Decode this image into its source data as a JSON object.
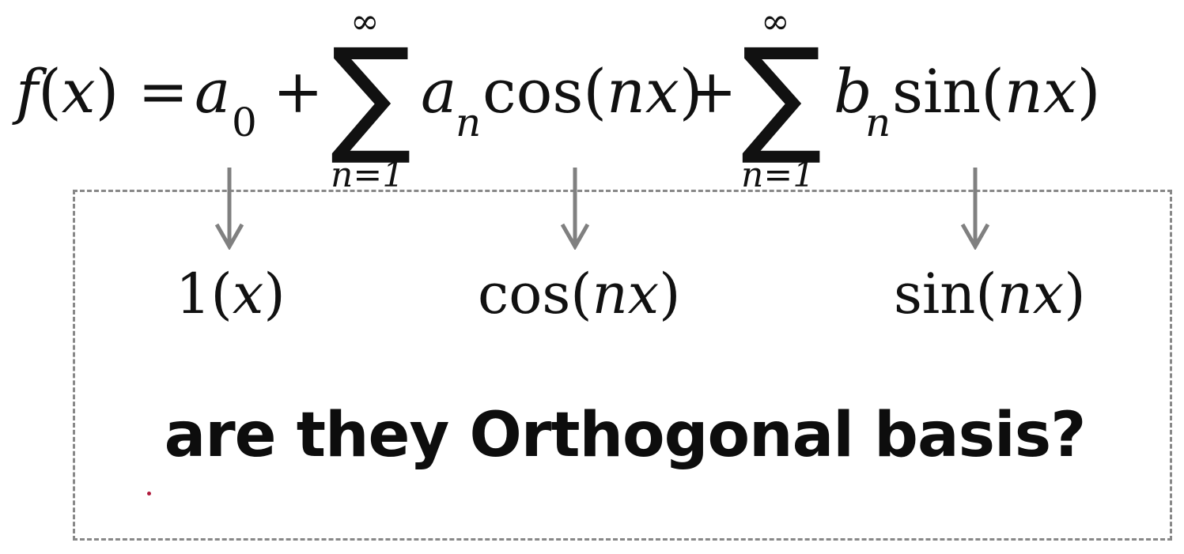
{
  "formula": {
    "lhs": "f(x) =",
    "a0_base": "a",
    "a0_sub": "0",
    "plus1": "+",
    "sum1_upper": "∞",
    "sum1_symbol": "∑",
    "sum1_lower": "n=1",
    "an_base": "a",
    "an_sub": "n",
    "cos_term": "cos(nx)",
    "plus2": "+",
    "sum2_upper": "∞",
    "sum2_symbol": "∑",
    "sum2_lower": "n=1",
    "bn_base": "b",
    "bn_sub": "n",
    "sin_term": "sin(nx)"
  },
  "basis": {
    "one": "1(x)",
    "cos": "cos(nx)",
    "sin": "sin(nx)"
  },
  "question": "are they Orthogonal basis?",
  "colors": {
    "arrow": "#808080",
    "dashed_border": "#888888",
    "text": "#111111",
    "dot": "#b01a3c"
  }
}
